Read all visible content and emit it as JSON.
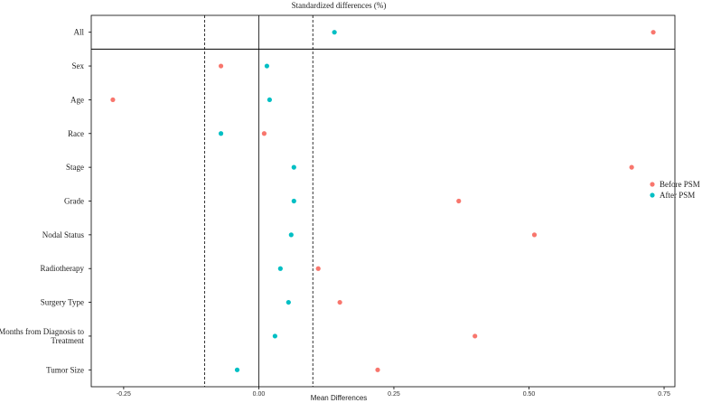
{
  "chart_data": {
    "type": "scatter",
    "title": "Standardized differences (%)",
    "xlabel": "Mean Differences",
    "ylabel": "",
    "xlim": [
      -0.31,
      0.77
    ],
    "xticks": [
      -0.25,
      0.0,
      0.25,
      0.5,
      0.75
    ],
    "xtick_labels": [
      "-0.25",
      "0.00",
      "0.25",
      "0.50",
      "0.75"
    ],
    "reference_lines": {
      "solid": [
        0.0
      ],
      "dashed": [
        -0.1,
        0.1
      ]
    },
    "grid": false,
    "legend_position": "right",
    "categories": [
      "All",
      "Sex",
      "Age",
      "Race",
      "Stage",
      "Grade",
      "Nodal Status",
      "Radiotherapy",
      "Surgery Type",
      "Months from Diagnosis to Treatment",
      "Tumor Size"
    ],
    "category_display": [
      [
        "All"
      ],
      [
        "Sex"
      ],
      [
        "Age"
      ],
      [
        "Race"
      ],
      [
        "Stage"
      ],
      [
        "Grade"
      ],
      [
        "Nodal Status"
      ],
      [
        "Radiotherapy"
      ],
      [
        "Surgery Type"
      ],
      [
        "Months from Diagnosis to",
        "Treatment"
      ],
      [
        "Tumor Size"
      ]
    ],
    "series": [
      {
        "name": "Before PSM",
        "color": "#F8766D",
        "values": [
          0.73,
          -0.07,
          -0.27,
          0.01,
          0.69,
          0.37,
          0.51,
          0.11,
          0.15,
          0.4,
          0.22
        ]
      },
      {
        "name": "After PSM",
        "color": "#00BFC4",
        "values": [
          0.14,
          0.015,
          0.02,
          -0.07,
          0.065,
          0.065,
          0.06,
          0.04,
          0.055,
          0.03,
          -0.04
        ]
      }
    ]
  }
}
